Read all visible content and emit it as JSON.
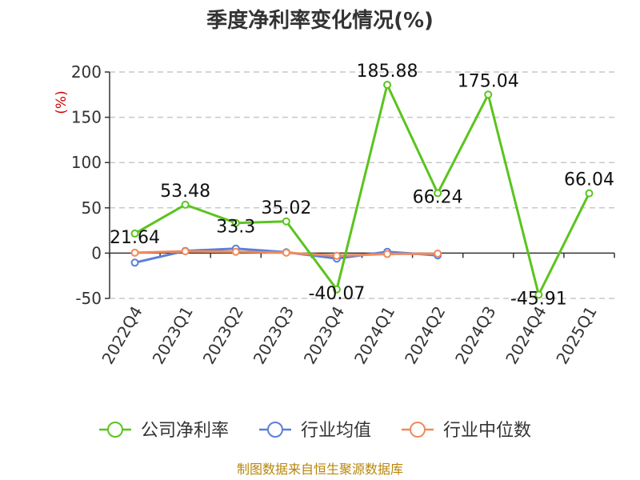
{
  "chart_data": {
    "type": "line",
    "title": "季度净利率变化情况(%)",
    "ylabel": "(%)",
    "ylim": [
      -50,
      200
    ],
    "yticks": [
      -50,
      0,
      50,
      100,
      150,
      200
    ],
    "grid": true,
    "legend_position": "bottom",
    "categories": [
      "2022Q4",
      "2023Q1",
      "2023Q2",
      "2023Q3",
      "2023Q4",
      "2024Q1",
      "2024Q2",
      "2024Q3",
      "2024Q4",
      "2025Q1"
    ],
    "series": [
      {
        "name": "公司净利率",
        "color": "#5ac41e",
        "values": [
          21.64,
          53.48,
          33.3,
          35.02,
          -40.07,
          185.88,
          66.24,
          175.04,
          -45.91,
          66.04
        ],
        "labels": [
          "21.64",
          "53.48",
          "33.3",
          "35.02",
          "-40.07",
          "185.88",
          "66.24",
          "175.04",
          "-45.91",
          "66.04"
        ]
      },
      {
        "name": "行业均值",
        "color": "#5b7fd9",
        "values": [
          -10.5,
          2.5,
          5.0,
          1.0,
          -6.0,
          1.5,
          -2.5,
          null,
          null,
          null
        ]
      },
      {
        "name": "行业中位数",
        "color": "#f08a5a",
        "values": [
          0.5,
          2.0,
          1.5,
          0.5,
          -3.0,
          -1.0,
          -0.5,
          null,
          null,
          null
        ]
      }
    ]
  },
  "source": "制图数据来自恒生聚源数据库"
}
